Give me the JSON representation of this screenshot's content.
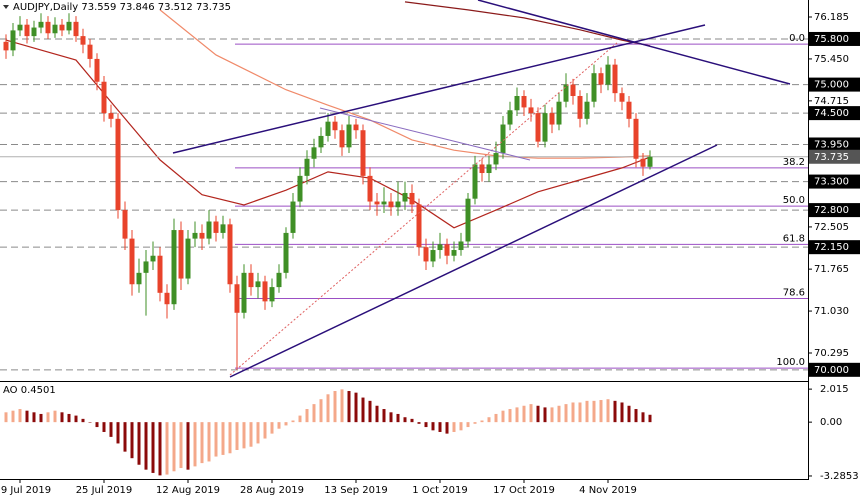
{
  "chart_data": [
    {
      "type": "candlestick",
      "symbol": "AUDJPY,Daily",
      "categories": [
        null,
        null,
        "9 Jul 2019",
        null,
        null,
        null,
        null,
        null,
        null,
        null,
        null,
        null,
        null,
        null,
        "25 Jul 2019",
        null,
        null,
        null,
        null,
        null,
        null,
        null,
        null,
        null,
        null,
        null,
        "12 Aug 2019",
        null,
        null,
        null,
        null,
        null,
        null,
        null,
        null,
        null,
        null,
        null,
        "28 Aug 2019",
        null,
        null,
        null,
        null,
        null,
        null,
        null,
        null,
        null,
        null,
        null,
        "13 Sep 2019",
        null,
        null,
        null,
        null,
        null,
        null,
        null,
        null,
        null,
        null,
        null,
        "1 Oct 2019",
        null,
        null,
        null,
        null,
        null,
        null,
        null,
        null,
        null,
        null,
        null,
        "17 Oct 2019",
        null,
        null,
        null,
        null,
        null,
        null,
        null,
        null,
        null,
        null,
        null,
        "4 Nov 2019",
        null,
        null,
        null,
        null,
        null,
        null
      ],
      "open": [
        75.75,
        75.6,
        75.95,
        76.05,
        75.85,
        76.0,
        76.1,
        75.9,
        76.05,
        75.95,
        76.1,
        75.85,
        75.7,
        75.45,
        75.05,
        74.5,
        74.4,
        72.8,
        72.3,
        71.5,
        71.7,
        71.9,
        72.0,
        71.35,
        71.15,
        72.45,
        71.6,
        72.3,
        72.4,
        72.3,
        72.6,
        72.4,
        72.55,
        71.5,
        71.0,
        71.7,
        71.45,
        71.55,
        71.2,
        71.45,
        71.7,
        72.4,
        72.95,
        73.4,
        73.7,
        73.9,
        74.1,
        74.35,
        74.2,
        73.9,
        74.3,
        74.2,
        73.4,
        72.95,
        72.9,
        72.95,
        72.85,
        72.95,
        73.1,
        72.9,
        72.15,
        71.9,
        72.1,
        72.2,
        72.0,
        72.1,
        72.25,
        73.0,
        73.6,
        73.45,
        73.6,
        73.8,
        74.3,
        74.55,
        74.8,
        74.6,
        74.5,
        74.0,
        74.5,
        74.3,
        74.7,
        75.0,
        74.8,
        74.4,
        74.7,
        75.2,
        75.0,
        75.35,
        74.85,
        74.7,
        74.4,
        73.7,
        73.559
      ],
      "high": [
        75.88,
        76.08,
        76.2,
        76.15,
        76.12,
        76.25,
        76.2,
        76.18,
        76.15,
        76.25,
        76.2,
        75.98,
        75.8,
        75.55,
        75.15,
        74.65,
        74.5,
        72.95,
        72.45,
        71.95,
        72.1,
        72.25,
        72.15,
        71.5,
        72.65,
        72.6,
        72.45,
        72.6,
        72.55,
        72.8,
        72.7,
        72.7,
        72.65,
        71.65,
        71.85,
        71.85,
        71.7,
        71.65,
        71.6,
        71.85,
        72.5,
        73.1,
        73.55,
        73.85,
        74.05,
        74.25,
        74.5,
        74.45,
        74.3,
        74.45,
        74.4,
        74.3,
        73.55,
        73.1,
        73.2,
        73.1,
        73.3,
        73.3,
        73.25,
        73.0,
        72.3,
        72.25,
        72.4,
        72.3,
        72.25,
        72.4,
        73.1,
        73.75,
        73.7,
        73.75,
        74.0,
        74.45,
        74.7,
        74.95,
        74.9,
        74.75,
        74.6,
        74.65,
        74.6,
        74.85,
        75.2,
        75.1,
        74.9,
        74.85,
        75.35,
        75.3,
        75.5,
        75.45,
        74.95,
        74.8,
        74.5,
        73.8,
        73.846
      ],
      "low": [
        75.45,
        75.5,
        75.85,
        75.72,
        75.75,
        75.9,
        75.8,
        75.82,
        75.85,
        75.88,
        75.75,
        75.55,
        75.3,
        74.9,
        74.35,
        74.25,
        72.65,
        72.1,
        71.3,
        71.35,
        70.95,
        71.75,
        71.2,
        70.9,
        71.05,
        71.4,
        71.5,
        72.15,
        72.1,
        72.2,
        72.25,
        72.3,
        71.35,
        70.02,
        70.9,
        71.3,
        71.25,
        71.05,
        71.1,
        71.35,
        71.6,
        72.3,
        72.85,
        73.25,
        73.55,
        73.8,
        74.0,
        74.05,
        73.75,
        73.8,
        74.05,
        73.25,
        72.8,
        72.7,
        72.75,
        72.7,
        72.7,
        72.8,
        72.75,
        72.0,
        71.75,
        71.8,
        71.95,
        71.85,
        71.9,
        72.0,
        72.15,
        72.9,
        73.3,
        73.3,
        73.5,
        73.7,
        74.2,
        74.45,
        74.45,
        74.35,
        73.9,
        73.9,
        74.15,
        74.2,
        74.6,
        74.65,
        74.25,
        74.3,
        74.6,
        74.85,
        74.9,
        74.7,
        74.55,
        74.25,
        73.55,
        73.4,
        73.512
      ],
      "close": [
        75.6,
        75.95,
        76.05,
        75.85,
        76.0,
        76.1,
        75.9,
        76.05,
        75.95,
        76.1,
        75.85,
        75.7,
        75.45,
        75.05,
        74.5,
        74.4,
        72.8,
        72.3,
        71.5,
        71.7,
        71.9,
        72.0,
        71.35,
        71.15,
        72.45,
        71.6,
        72.3,
        72.4,
        72.3,
        72.6,
        72.4,
        72.55,
        71.5,
        71.0,
        71.7,
        71.45,
        71.55,
        71.2,
        71.45,
        71.7,
        72.4,
        72.95,
        73.4,
        73.7,
        73.9,
        74.1,
        74.35,
        74.2,
        73.9,
        74.3,
        74.2,
        73.4,
        72.95,
        72.9,
        72.95,
        72.85,
        72.95,
        73.1,
        72.9,
        72.15,
        71.9,
        72.1,
        72.2,
        72.0,
        72.1,
        72.25,
        73.0,
        73.6,
        73.45,
        73.6,
        73.8,
        74.3,
        74.55,
        74.8,
        74.6,
        74.5,
        74.0,
        74.5,
        74.3,
        74.7,
        75.0,
        74.8,
        74.4,
        74.7,
        75.2,
        75.0,
        75.35,
        74.85,
        74.7,
        74.4,
        73.7,
        73.56,
        73.735
      ],
      "up_color": "#3f8f26",
      "down_color": "#e8432b",
      "ylim": [
        69.804,
        76.483
      ],
      "yticks": [
        76.185,
        {
          "value": 75.45,
          "label": "75.450"
        },
        74.715,
        72.505,
        71.765,
        {
          "value": 71.03,
          "label": "71.030"
        },
        70.295
      ],
      "levels": [
        {
          "value": 75.8,
          "label": "75.800"
        },
        {
          "value": 75,
          "label": "75.000"
        },
        {
          "value": 74.5,
          "label": "74.500"
        },
        {
          "value": 73.95,
          "label": "73.950"
        },
        {
          "value": 73.3,
          "label": "73.300"
        },
        {
          "value": 72.8,
          "label": "72.800"
        },
        {
          "value": 72.15,
          "label": "72.150"
        },
        {
          "value": 70,
          "label": "70.000"
        }
      ],
      "fibonacci": [
        {
          "label": "0.0",
          "value": 75.71
        },
        {
          "label": "38.2",
          "value": 73.54
        },
        {
          "label": "50.0",
          "value": 72.87
        },
        {
          "label": "61.8",
          "value": 72.2
        },
        {
          "label": "78.6",
          "value": 71.25
        },
        {
          "label": "100.0",
          "value": 70.03
        }
      ],
      "fib_color": "#9b4fc4",
      "lines": [
        {
          "color": "#b3261e",
          "x": [
            0,
            10,
            16,
            22,
            28,
            34,
            40,
            46,
            52,
            58,
            64,
            70,
            76,
            82,
            88,
            92
          ],
          "values": [
            75.78,
            75.43,
            74.55,
            73.68,
            73.07,
            72.89,
            73.15,
            73.47,
            73.36,
            72.98,
            72.49,
            72.8,
            73.12,
            73.33,
            73.54,
            73.73
          ]
        },
        {
          "color": "#f08a6a",
          "x": [
            22,
            30,
            40,
            46,
            52,
            58,
            64,
            70,
            76,
            82,
            88,
            92
          ],
          "values": [
            76.31,
            75.52,
            74.91,
            74.64,
            74.38,
            74.03,
            73.85,
            73.75,
            73.71,
            73.71,
            73.73,
            73.75
          ]
        },
        {
          "color": "#8b1a1a",
          "x": [
            57,
            66,
            74,
            82,
            88,
            92
          ],
          "values": [
            76.45,
            76.31,
            76.17,
            75.96,
            75.78,
            75.68
          ]
        }
      ]
    },
    {
      "type": "histogram",
      "title": "AO",
      "values": [
        0.6,
        0.7,
        0.8,
        0.7,
        0.6,
        0.5,
        0.6,
        0.7,
        0.6,
        0.5,
        0.4,
        0.2,
        0.0,
        -0.3,
        -0.6,
        -0.9,
        -1.3,
        -1.8,
        -2.2,
        -2.6,
        -2.9,
        -3.1,
        -3.25,
        -3.2,
        -3.0,
        -2.8,
        -2.9,
        -2.7,
        -2.5,
        -2.4,
        -2.1,
        -2.0,
        -1.9,
        -1.7,
        -1.6,
        -1.5,
        -1.3,
        -1.0,
        -0.7,
        -0.4,
        -0.2,
        0.1,
        0.4,
        0.8,
        1.1,
        1.4,
        1.7,
        1.9,
        2.0,
        1.9,
        1.8,
        1.5,
        1.3,
        1.0,
        0.8,
        0.6,
        0.5,
        0.3,
        0.2,
        -0.1,
        -0.3,
        -0.5,
        -0.6,
        -0.7,
        -0.6,
        -0.5,
        -0.3,
        -0.1,
        0.1,
        0.3,
        0.5,
        0.7,
        0.8,
        0.9,
        1.0,
        1.1,
        1.0,
        0.9,
        0.9,
        1.0,
        1.1,
        1.2,
        1.2,
        1.3,
        1.3,
        1.35,
        1.4,
        1.3,
        1.2,
        1.0,
        0.8,
        0.6,
        0.4501
      ],
      "up_color": "#f4a88a",
      "down_color": "#8b0a0a",
      "ylim": [
        -3.47,
        2.45
      ],
      "yticks": [
        2.015,
        {
          "value": 0,
          "label": "0.00"
        },
        -3.2853
      ]
    }
  ]
}
